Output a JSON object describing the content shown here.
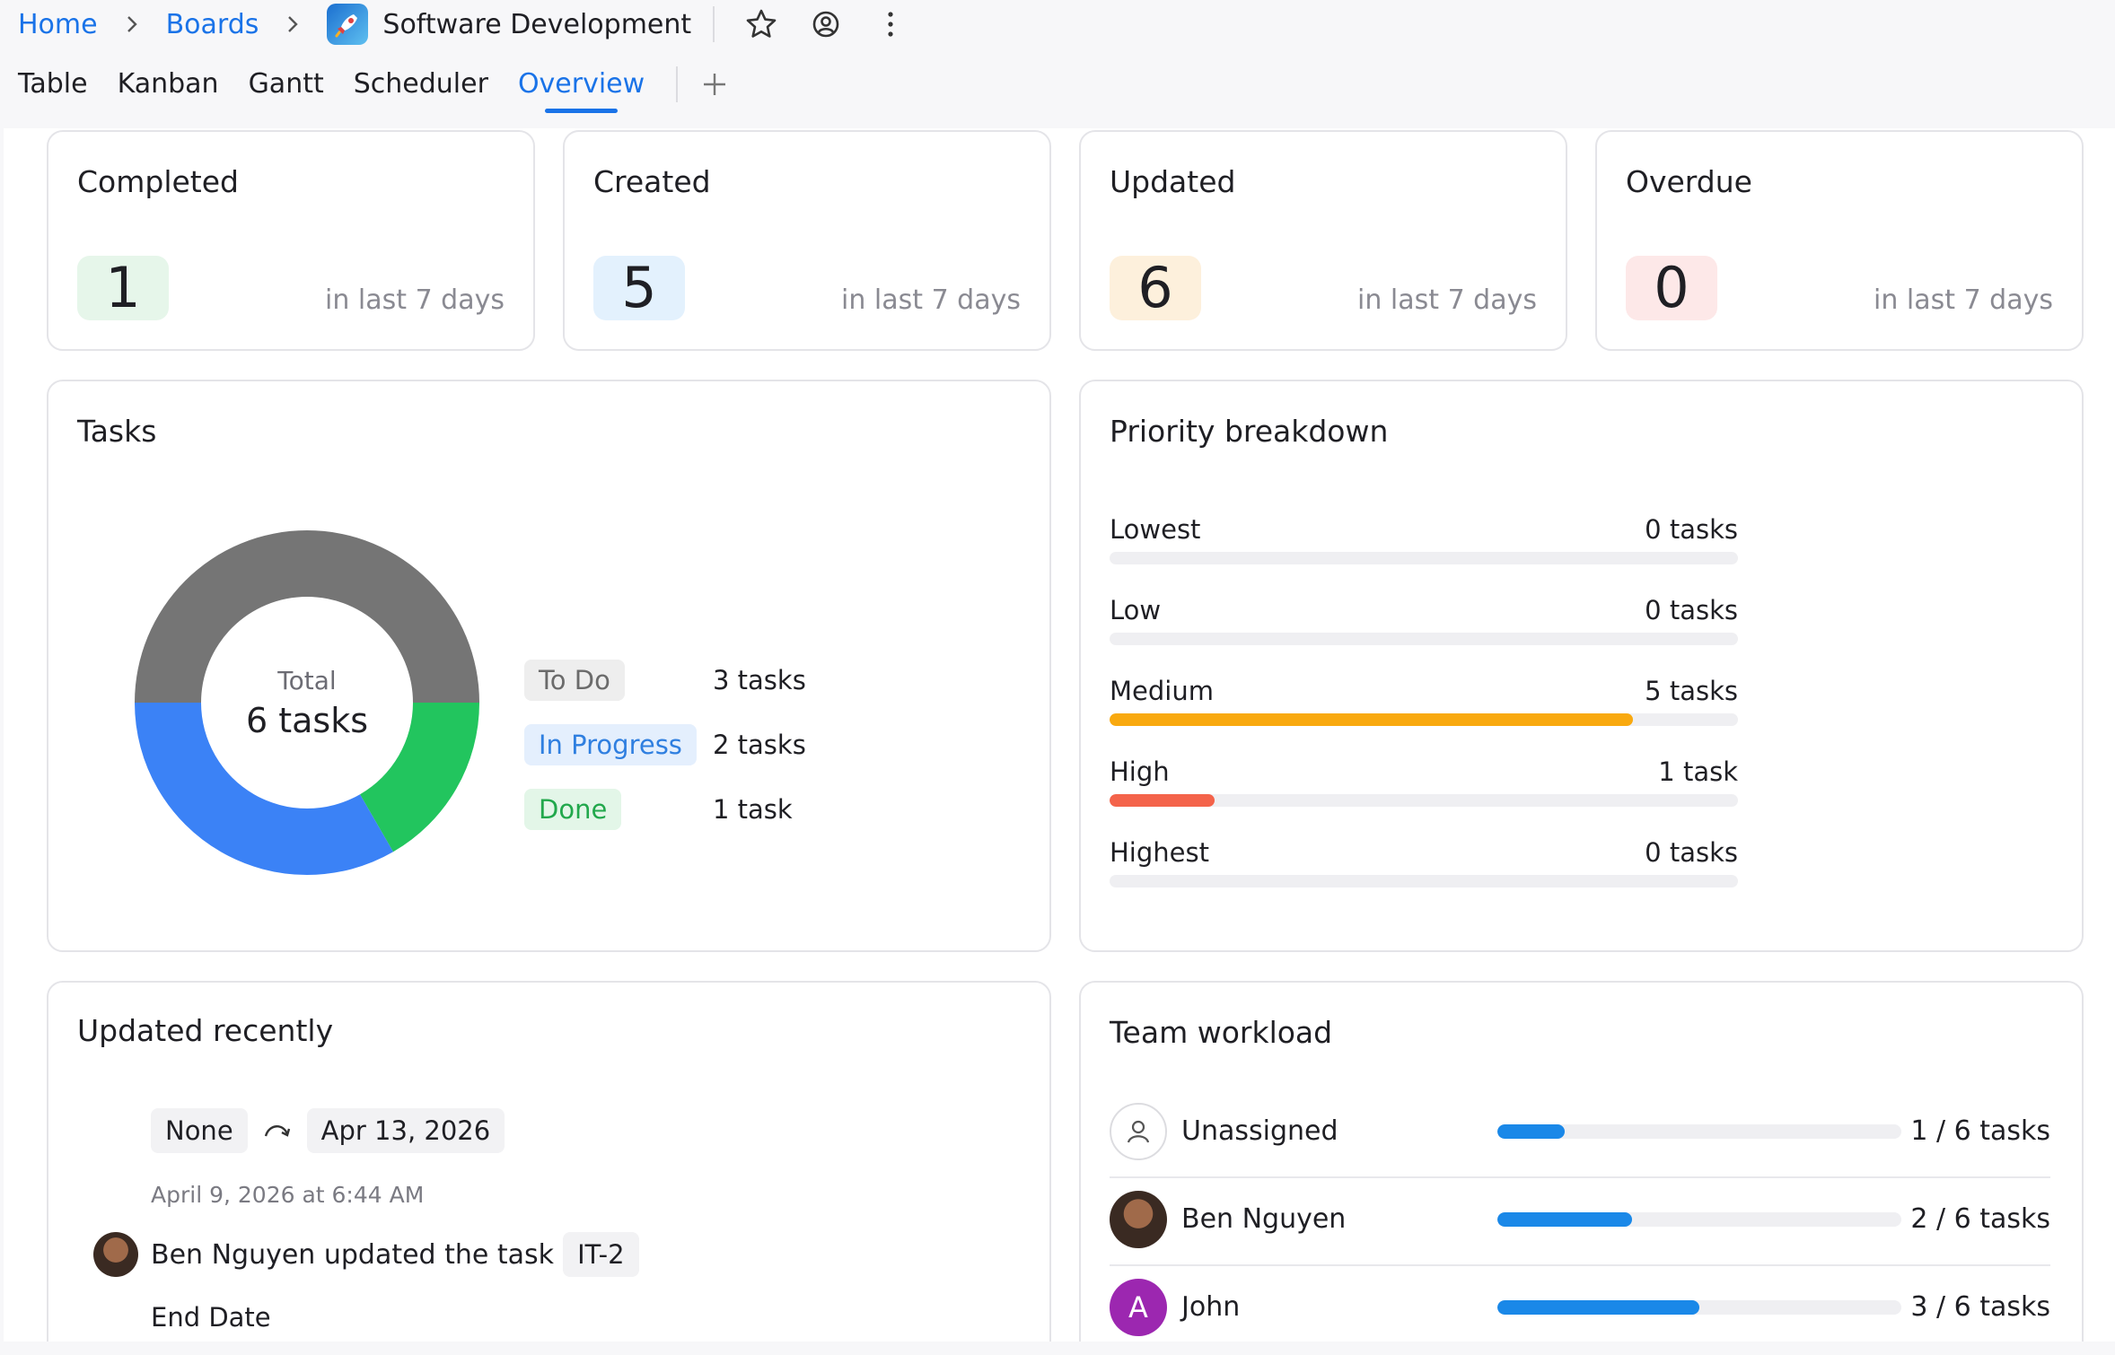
{
  "breadcrumb": {
    "home": "Home",
    "boards": "Boards",
    "board_title": "Software Development"
  },
  "header_icons": [
    "rocket-icon",
    "star-icon",
    "watch-icon",
    "more-icon"
  ],
  "tabs": [
    {
      "label": "Table",
      "active": false
    },
    {
      "label": "Kanban",
      "active": false
    },
    {
      "label": "Gantt",
      "active": false
    },
    {
      "label": "Scheduler",
      "active": false
    },
    {
      "label": "Overview",
      "active": true
    }
  ],
  "stats": [
    {
      "title": "Completed",
      "value": "1",
      "sub": "in last 7 days",
      "color": "#e6f6ea"
    },
    {
      "title": "Created",
      "value": "5",
      "sub": "in last 7 days",
      "color": "#e3f1fd"
    },
    {
      "title": "Updated",
      "value": "6",
      "sub": "in last 7 days",
      "color": "#fdf0dc"
    },
    {
      "title": "Overdue",
      "value": "0",
      "sub": "in last 7 days",
      "color": "#fde8e8"
    }
  ],
  "tasks": {
    "title": "Tasks",
    "total_label": "Total",
    "total_value": "6 tasks",
    "legend": [
      {
        "label": "To Do",
        "count": "3 tasks",
        "value": 3,
        "color": "#757575",
        "pill_bg": "#eeeeee",
        "pill_fg": "#6b6b6b"
      },
      {
        "label": "In Progress",
        "count": "2 tasks",
        "value": 2,
        "color": "#3b82f6",
        "pill_bg": "#e4effd",
        "pill_fg": "#2f7fe0"
      },
      {
        "label": "Done",
        "count": "1 task",
        "value": 1,
        "color": "#22c55e",
        "pill_bg": "#e3f6e8",
        "pill_fg": "#22a84c"
      }
    ]
  },
  "priority": {
    "title": "Priority breakdown",
    "rows": [
      {
        "label": "Lowest",
        "count": "0 tasks",
        "fraction": 0,
        "color": "#cccccc"
      },
      {
        "label": "Low",
        "count": "0 tasks",
        "fraction": 0,
        "color": "#cccccc"
      },
      {
        "label": "Medium",
        "count": "5 tasks",
        "fraction": 0.833,
        "color": "#f9a90f"
      },
      {
        "label": "High",
        "count": "1 task",
        "fraction": 0.167,
        "color": "#f4634a"
      },
      {
        "label": "Highest",
        "count": "0 tasks",
        "fraction": 0,
        "color": "#cccccc"
      }
    ]
  },
  "updated_recently": {
    "title": "Updated recently",
    "entry1": {
      "from": "None",
      "to": "Apr 13, 2026",
      "time": "April 9, 2026 at 6:44 AM"
    },
    "entry2": {
      "text": "Ben Nguyen updated the task",
      "task_key": "IT-2",
      "field": "End Date"
    }
  },
  "team_workload": {
    "title": "Team workload",
    "rows": [
      {
        "name": "Unassigned",
        "count": "1 / 6 tasks",
        "fraction": 0.1667
      },
      {
        "name": "Ben Nguyen",
        "count": "2 / 6 tasks",
        "fraction": 0.3333
      },
      {
        "name": "John",
        "count": "3 / 6 tasks",
        "fraction": 0.5,
        "initial": "A"
      }
    ]
  }
}
